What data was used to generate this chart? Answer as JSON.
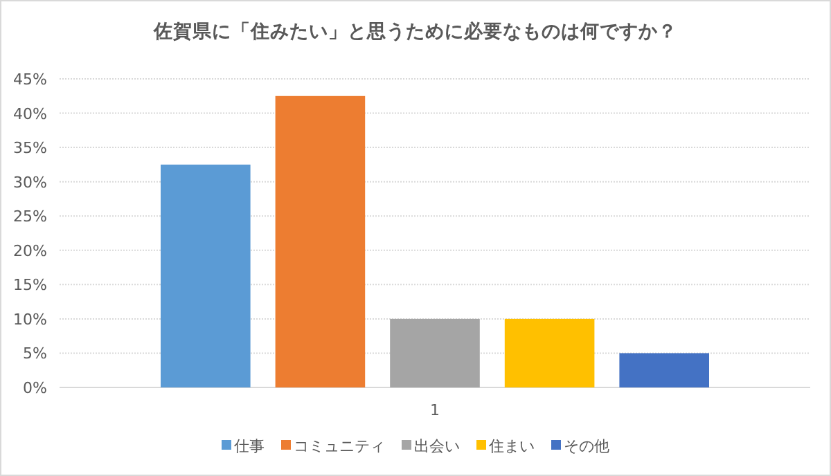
{
  "chart_data": {
    "type": "bar",
    "title": "佐賀県に「住みたい」と思うために必要なものは何ですか？",
    "categories": [
      "1"
    ],
    "series": [
      {
        "name": "仕事",
        "color": "#5b9bd5",
        "values": [
          32.5
        ]
      },
      {
        "name": "コミュニティ",
        "color": "#ed7d31",
        "values": [
          42.5
        ]
      },
      {
        "name": "出会い",
        "color": "#a5a5a5",
        "values": [
          10
        ]
      },
      {
        "name": "住まい",
        "color": "#ffc000",
        "values": [
          10
        ]
      },
      {
        "name": "その他",
        "color": "#4472c4",
        "values": [
          5
        ]
      }
    ],
    "ylim": [
      0,
      45
    ],
    "yticks": [
      {
        "value": 0,
        "label": "0%"
      },
      {
        "value": 5,
        "label": "5%"
      },
      {
        "value": 10,
        "label": "10%"
      },
      {
        "value": 15,
        "label": "15%"
      },
      {
        "value": 20,
        "label": "20%"
      },
      {
        "value": 25,
        "label": "25%"
      },
      {
        "value": 30,
        "label": "30%"
      },
      {
        "value": 35,
        "label": "35%"
      },
      {
        "value": 40,
        "label": "40%"
      },
      {
        "value": 45,
        "label": "45%"
      }
    ],
    "grid": "y",
    "legend": "bottom"
  }
}
